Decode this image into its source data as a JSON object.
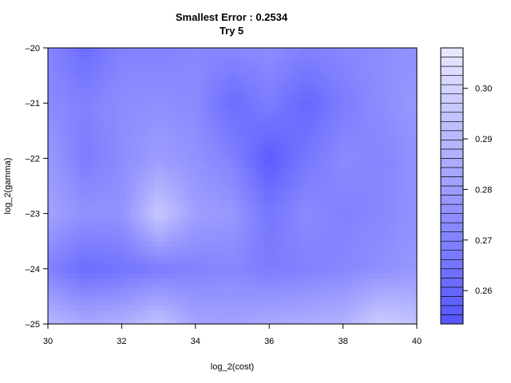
{
  "chart_data": {
    "type": "heatmap",
    "title": "Smallest Error : 0.2534",
    "subtitle": "Try 5",
    "xlabel": "log_2(cost)",
    "ylabel": "log_2(gamma)",
    "x": [
      30,
      31,
      32,
      33,
      34,
      35,
      36,
      37,
      38,
      39,
      40
    ],
    "y": [
      -25,
      -24,
      -23,
      -22,
      -21,
      -20
    ],
    "z": [
      [
        0.29,
        0.285,
        0.287,
        0.294,
        0.283,
        0.282,
        0.285,
        0.286,
        0.288,
        0.298,
        0.294
      ],
      [
        0.27,
        0.262,
        0.265,
        0.268,
        0.27,
        0.272,
        0.268,
        0.27,
        0.272,
        0.275,
        0.278
      ],
      [
        0.282,
        0.276,
        0.276,
        0.296,
        0.281,
        0.278,
        0.266,
        0.273,
        0.27,
        0.272,
        0.276
      ],
      [
        0.279,
        0.268,
        0.274,
        0.28,
        0.276,
        0.27,
        0.256,
        0.266,
        0.273,
        0.271,
        0.276
      ],
      [
        0.273,
        0.27,
        0.274,
        0.275,
        0.273,
        0.262,
        0.268,
        0.26,
        0.268,
        0.274,
        0.278
      ],
      [
        0.271,
        0.262,
        0.27,
        0.27,
        0.272,
        0.272,
        0.274,
        0.27,
        0.272,
        0.274,
        0.276
      ]
    ],
    "xlim": [
      30,
      40
    ],
    "ylim": [
      -25,
      -20
    ],
    "x_ticks": [
      30,
      32,
      34,
      36,
      38,
      40
    ],
    "y_ticks": [
      -25,
      -24,
      -23,
      -22,
      -21,
      -20
    ],
    "zlim": [
      0.2534,
      0.308
    ],
    "colorbar_ticks": [
      0.26,
      0.27,
      0.28,
      0.29,
      0.3
    ],
    "colorbar_levels": 30,
    "color_low": "#5555ff",
    "color_high": "#e8e8ff",
    "legend_placement": "right",
    "grid": false
  }
}
